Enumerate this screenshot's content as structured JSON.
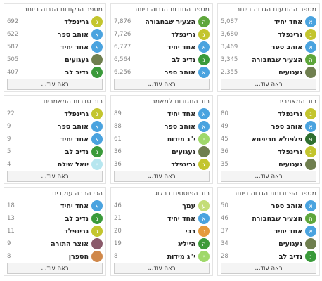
{
  "panels": [
    {
      "title": "מספר ההודעות הגבוה ביותר",
      "more": "ראה עוד...",
      "rows": [
        {
          "letter": "א",
          "color": "#4aa3df",
          "name": "אחד יחיד",
          "value": "5,087"
        },
        {
          "letter": "ג",
          "color": "#c3c52e",
          "name": "גרינפלד",
          "value": "3,680"
        },
        {
          "letter": "א",
          "color": "#4aa3df",
          "name": "אוהב ספר",
          "value": "3,469"
        },
        {
          "letter": "ה",
          "color": "#5ea63b",
          "name": "הצעיר שבחבורה",
          "value": "3,345"
        },
        {
          "color": "#6f7f4f",
          "name": "געגועים",
          "value": "2,355"
        }
      ]
    },
    {
      "title": "מספר התודות הגבוה ביותר",
      "more": "ראה עוד...",
      "rows": [
        {
          "letter": "ה",
          "color": "#5ea63b",
          "name": "הצעיר שבחבורה",
          "value": "7,876"
        },
        {
          "letter": "ג",
          "color": "#c3c52e",
          "name": "גרינפלד",
          "value": "7,726"
        },
        {
          "letter": "א",
          "color": "#4aa3df",
          "name": "אחד יחיד",
          "value": "6,777"
        },
        {
          "letter": "נ",
          "color": "#3a9a3a",
          "name": "נדיב לב",
          "value": "6,564"
        },
        {
          "letter": "א",
          "color": "#4aa3df",
          "name": "אוהב ספר",
          "value": "6,256"
        }
      ]
    },
    {
      "title": "מספר הנקודות הגבוה ביותר",
      "more": "ראה עוד...",
      "rows": [
        {
          "letter": "ג",
          "color": "#c3c52e",
          "name": "גרינפלד",
          "value": "692"
        },
        {
          "letter": "א",
          "color": "#4aa3df",
          "name": "אוהב ספר",
          "value": "622"
        },
        {
          "letter": "א",
          "color": "#4aa3df",
          "name": "אחד יחיד",
          "value": "587"
        },
        {
          "color": "#6f7f4f",
          "name": "געגועים",
          "value": "505"
        },
        {
          "letter": "נ",
          "color": "#3a9a3a",
          "name": "נדיב לב",
          "value": "407"
        }
      ]
    },
    {
      "title": "רוב המאמרים",
      "more": "ראה עוד...",
      "rows": [
        {
          "letter": "ג",
          "color": "#c3c52e",
          "name": "גרינפלד",
          "value": "80"
        },
        {
          "letter": "א",
          "color": "#4aa3df",
          "name": "אוהב ספר",
          "value": "49"
        },
        {
          "letter": "פ",
          "color": "#2f6e2f",
          "name": "פלפולא חריפתא",
          "value": "45"
        },
        {
          "letter": "ג",
          "color": "#c3c52e",
          "name": "גרינפלד",
          "value": "36"
        },
        {
          "color": "#6f7f4f",
          "name": "געגועים",
          "value": "35"
        }
      ]
    },
    {
      "title": "רוב התגובות למאמר",
      "more": "ראה עוד...",
      "rows": [
        {
          "letter": "א",
          "color": "#4aa3df",
          "name": "אחד יחיד",
          "value": "89"
        },
        {
          "letter": "א",
          "color": "#4aa3df",
          "name": "אוהב ספר",
          "value": "88"
        },
        {
          "letter": "י",
          "color": "#9fd86a",
          "name": "י\"ג מידות",
          "value": "61"
        },
        {
          "color": "#6f7f4f",
          "name": "געגועים",
          "value": "36"
        },
        {
          "letter": "ג",
          "color": "#c3c52e",
          "name": "גרינפלד",
          "value": "36"
        }
      ]
    },
    {
      "title": "רוב סדרות המאמרים",
      "more": "ראה עוד...",
      "rows": [
        {
          "letter": "ג",
          "color": "#c3c52e",
          "name": "גרינפלד",
          "value": "22"
        },
        {
          "letter": "א",
          "color": "#4aa3df",
          "name": "אוהב ספר",
          "value": "9"
        },
        {
          "letter": "א",
          "color": "#4aa3df",
          "name": "אחד יחיד",
          "value": "9"
        },
        {
          "letter": "נ",
          "color": "#3a9a3a",
          "name": "נדיב לב",
          "value": "5"
        },
        {
          "letter": "י",
          "color": "#b6e6ef",
          "name": "יואל שילה",
          "value": "4"
        }
      ]
    },
    {
      "title": "מספר הפתרונות הגבוה ביותר",
      "more": "ראה עוד...",
      "rows": [
        {
          "letter": "א",
          "color": "#4aa3df",
          "name": "אוהב ספר",
          "value": "50"
        },
        {
          "letter": "ה",
          "color": "#5ea63b",
          "name": "הצעיר שבחבורה",
          "value": "46"
        },
        {
          "letter": "א",
          "color": "#4aa3df",
          "name": "אחד יחיד",
          "value": "37"
        },
        {
          "color": "#6f7f4f",
          "name": "געגועים",
          "value": "34"
        },
        {
          "letter": "נ",
          "color": "#3a9a3a",
          "name": "נדיב לב",
          "value": "28"
        }
      ]
    },
    {
      "title": "רוב הפוסטים בבלוג",
      "more": "ראה עוד...",
      "rows": [
        {
          "letter": "ע",
          "color": "#c4dd78",
          "name": "עמך",
          "value": "46"
        },
        {
          "letter": "א",
          "color": "#4aa3df",
          "name": "אחד יחיד",
          "value": "21"
        },
        {
          "letter": "ר",
          "color": "#e59a3c",
          "name": "רבי",
          "value": "20"
        },
        {
          "letter": "ה",
          "color": "#3f9a3a",
          "name": "הייליג",
          "value": "19"
        },
        {
          "letter": "י",
          "color": "#9fd86a",
          "name": "י\"ג מידות",
          "value": "8"
        }
      ]
    },
    {
      "title": "הכי הרבה עוקבים",
      "more": "ראה עוד...",
      "rows": [
        {
          "letter": "א",
          "color": "#4aa3df",
          "name": "אחד יחיד",
          "value": "18"
        },
        {
          "letter": "נ",
          "color": "#3a9a3a",
          "name": "נדיב לב",
          "value": "13"
        },
        {
          "letter": "ג",
          "color": "#c3c52e",
          "name": "גרינפלד",
          "value": "11"
        },
        {
          "color": "#8a5a6a",
          "name": "אוצר התורה",
          "value": "9"
        },
        {
          "color": "#d0884a",
          "name": "הספרן",
          "value": "8"
        }
      ]
    }
  ]
}
